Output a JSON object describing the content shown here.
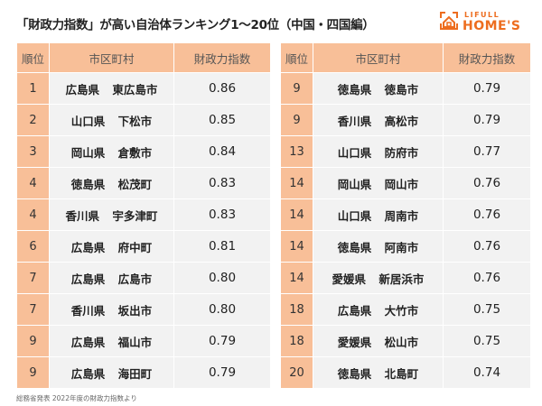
{
  "title": "「財政力指数」が高い自治体ランキング1〜20位（中国・四国編）",
  "logo": {
    "line1": "LIFULL",
    "line2": "HOME'S",
    "color": "#ed6d1f"
  },
  "headers": {
    "rank": "順位",
    "name": "市区町村",
    "value": "財政力指数"
  },
  "colors": {
    "header": "#f8bf98",
    "cell": "#f2f2f2"
  },
  "left": [
    {
      "rank": "1",
      "pref": "広島県",
      "city": "東広島市",
      "value": "0.86"
    },
    {
      "rank": "2",
      "pref": "山口県",
      "city": "下松市",
      "value": "0.85"
    },
    {
      "rank": "3",
      "pref": "岡山県",
      "city": "倉敷市",
      "value": "0.84"
    },
    {
      "rank": "4",
      "pref": "徳島県",
      "city": "松茂町",
      "value": "0.83"
    },
    {
      "rank": "4",
      "pref": "香川県",
      "city": "宇多津町",
      "value": "0.83"
    },
    {
      "rank": "6",
      "pref": "広島県",
      "city": "府中町",
      "value": "0.81"
    },
    {
      "rank": "7",
      "pref": "広島県",
      "city": "広島市",
      "value": "0.80"
    },
    {
      "rank": "7",
      "pref": "香川県",
      "city": "坂出市",
      "value": "0.80"
    },
    {
      "rank": "9",
      "pref": "広島県",
      "city": "福山市",
      "value": "0.79"
    },
    {
      "rank": "9",
      "pref": "広島県",
      "city": "海田町",
      "value": "0.79"
    }
  ],
  "right": [
    {
      "rank": "9",
      "pref": "徳島県",
      "city": "徳島市",
      "value": "0.79"
    },
    {
      "rank": "9",
      "pref": "香川県",
      "city": "高松市",
      "value": "0.79"
    },
    {
      "rank": "13",
      "pref": "山口県",
      "city": "防府市",
      "value": "0.77"
    },
    {
      "rank": "14",
      "pref": "岡山県",
      "city": "岡山市",
      "value": "0.76"
    },
    {
      "rank": "14",
      "pref": "山口県",
      "city": "周南市",
      "value": "0.76"
    },
    {
      "rank": "14",
      "pref": "徳島県",
      "city": "阿南市",
      "value": "0.76"
    },
    {
      "rank": "14",
      "pref": "愛媛県",
      "city": "新居浜市",
      "value": "0.76"
    },
    {
      "rank": "18",
      "pref": "広島県",
      "city": "大竹市",
      "value": "0.75"
    },
    {
      "rank": "18",
      "pref": "愛媛県",
      "city": "松山市",
      "value": "0.75"
    },
    {
      "rank": "20",
      "pref": "徳島県",
      "city": "北島町",
      "value": "0.74"
    }
  ],
  "footer": "総務省発表 2022年度の財政力指数より"
}
